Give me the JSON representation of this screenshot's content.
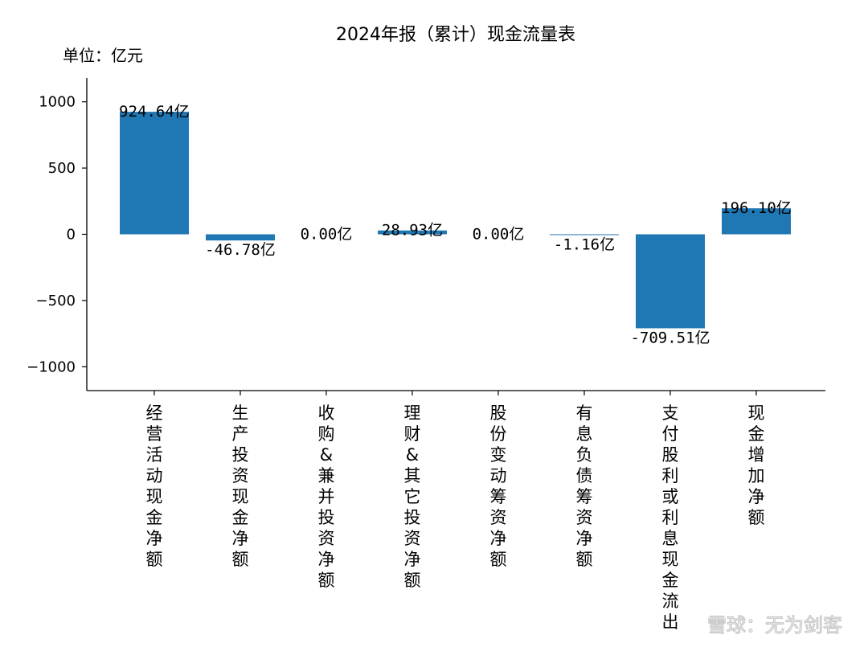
{
  "chart_data": {
    "type": "bar",
    "title": "2024年报（累计）现金流量表",
    "unit_label": "单位：亿元",
    "ylim": [
      -1180,
      1180
    ],
    "yticks": [
      1000,
      500,
      0,
      -500,
      -1000
    ],
    "grid": false,
    "bar_color": "#1f77b4",
    "categories": [
      "经营活动现金净额",
      "生产投资现金净额",
      "收购&兼并投资净额",
      "理财&其它投资净额",
      "股份变动筹资净额",
      "有息负债筹资净额",
      "支付股利或利息现金流出",
      "现金增加净额"
    ],
    "values": [
      924.64,
      -46.78,
      0.0,
      28.93,
      0.0,
      -1.16,
      -709.51,
      196.1
    ],
    "data_labels": [
      "924.64亿",
      "-46.78亿",
      "0.00亿",
      "28.93亿",
      "0.00亿",
      "-1.16亿",
      "-709.51亿",
      "196.10亿"
    ]
  },
  "watermark": "雪球：无为剑客"
}
